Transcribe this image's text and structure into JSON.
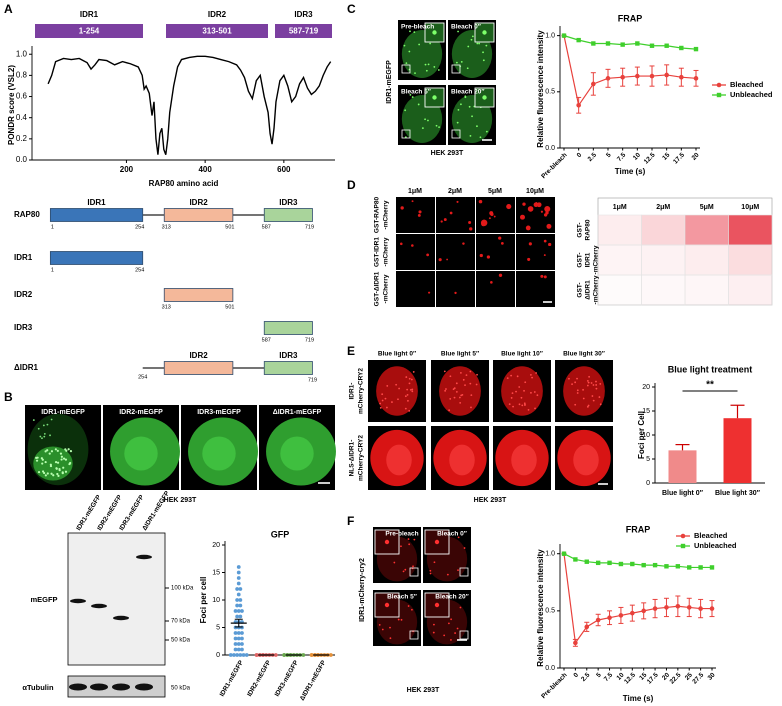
{
  "panel_labels": [
    "A",
    "B",
    "C",
    "D",
    "E",
    "F"
  ],
  "idr_regions": [
    {
      "name": "IDR1",
      "range": "1-254"
    },
    {
      "name": "IDR2",
      "range": "313-501"
    },
    {
      "name": "IDR3",
      "range": "587-719"
    }
  ],
  "domain_map": {
    "rows": [
      {
        "label": "RAP80",
        "domains": [
          {
            "name": "IDR1",
            "start": 1,
            "end": 254,
            "color": "#3a75b8"
          },
          {
            "name": "IDR2",
            "start": 313,
            "end": 501,
            "color": "#f4b89a"
          },
          {
            "name": "IDR3",
            "start": 587,
            "end": 719,
            "color": "#a9d49b"
          }
        ]
      },
      {
        "label": "IDR1",
        "domains": [
          {
            "start": 1,
            "end": 254,
            "color": "#3a75b8"
          }
        ]
      },
      {
        "label": "IDR2",
        "domains": [
          {
            "start": 313,
            "end": 501,
            "color": "#f4b89a"
          }
        ]
      },
      {
        "label": "IDR3",
        "domains": [
          {
            "start": 587,
            "end": 719,
            "color": "#a9d49b"
          }
        ]
      },
      {
        "label": "ΔIDR1",
        "start": 254,
        "end": 719,
        "domains": [
          {
            "name": "IDR2",
            "color": "#f4b89a"
          },
          {
            "name": "IDR3",
            "color": "#a9d49b"
          }
        ]
      }
    ]
  },
  "panel_b": {
    "images": [
      "IDR1-mEGFP",
      "IDR2-mEGFP",
      "IDR3-mEGFP",
      "ΔIDR1-mEGFP"
    ],
    "cell_line": "HEK 293T",
    "blot": {
      "lanes": [
        "IDR1-mEGFP",
        "IDR2-mEGFP",
        "IDR3-mEGFP",
        "ΔIDR1-mEGFP"
      ],
      "markers": [
        "100 kDa",
        "70 kDa",
        "50 kDa"
      ],
      "rows": [
        "mEGFP",
        "αTubulin"
      ],
      "tubulin_marker": "50 kDa"
    }
  },
  "panel_c": {
    "images": [
      "Pre-bleach",
      "Bleach 0″",
      "Bleach 5″",
      "Bleach 20″"
    ],
    "row_label": "IDR1-mEGFP",
    "cell_line": "HEK 293T"
  },
  "panel_d": {
    "columns": [
      "1μM",
      "2μM",
      "5μM",
      "10μM"
    ],
    "rows": [
      [
        "GST-RAP80",
        "-mCherry"
      ],
      [
        "GST-IDR1",
        "-mCherry"
      ],
      [
        "GST-ΔIDR1",
        "-mCherry"
      ]
    ]
  },
  "panel_e": {
    "columns": [
      "Blue light  0″",
      "Blue light 5″",
      "Blue light 10″",
      "Blue light 30″"
    ],
    "rows": [
      [
        "IDR1-",
        "mCherry-CRY2"
      ],
      [
        "NLS-ΔIDR1-",
        "mCherry-CRY2"
      ]
    ],
    "cell_line": "HEK 293T"
  },
  "panel_f": {
    "images": [
      "Pre-bleach",
      "Bleach 0″",
      "Bleach 5″",
      "Bleach 20″"
    ],
    "row_label": "IDR1-mCherry-cry2",
    "cell_line": "HEK 293T"
  },
  "chart_data": [
    {
      "type": "line",
      "x_label": "RAP80 amino acid",
      "y_label": "PONDR score (VSL2)",
      "x": [
        1,
        10,
        20,
        40,
        60,
        80,
        100,
        110,
        120,
        130,
        150,
        170,
        190,
        210,
        230,
        240,
        245,
        250,
        258,
        265,
        270,
        275,
        280,
        285,
        290,
        295,
        300,
        305,
        310,
        320,
        330,
        340,
        360,
        380,
        400,
        420,
        440,
        460,
        480,
        490,
        500,
        510,
        520,
        530,
        540,
        550,
        560,
        565,
        570,
        575,
        580,
        590,
        600,
        610,
        620,
        630,
        640,
        650,
        660,
        670,
        680,
        690,
        700,
        710,
        719
      ],
      "series": [
        {
          "color": "#000000",
          "values": [
            0.72,
            0.8,
            0.93,
            0.96,
            0.95,
            0.96,
            0.92,
            0.86,
            0.9,
            0.95,
            0.94,
            0.9,
            0.93,
            0.91,
            0.88,
            0.8,
            0.67,
            0.7,
            0.63,
            0.42,
            0.55,
            0.2,
            0.05,
            0.25,
            0.3,
            0.1,
            0.05,
            0.2,
            0.45,
            0.7,
            0.88,
            0.95,
            0.97,
            0.98,
            0.98,
            0.97,
            0.95,
            0.93,
            0.9,
            0.85,
            0.78,
            0.65,
            0.58,
            0.75,
            0.8,
            0.6,
            0.45,
            0.25,
            0.15,
            0.3,
            0.55,
            0.75,
            0.8,
            0.7,
            0.55,
            0.6,
            0.72,
            0.78,
            0.68,
            0.62,
            0.65,
            0.7,
            0.8,
            0.88,
            0.93
          ]
        }
      ],
      "xlim": [
        -40,
        730
      ],
      "xticks": [
        200,
        400,
        600
      ],
      "ylim": [
        0,
        1.04
      ],
      "yticks": [
        {
          "value": 0,
          "label": "0.0"
        },
        0.2,
        0.4,
        0.6,
        0.8,
        {
          "value": 1,
          "label": "1.0"
        }
      ]
    },
    {
      "type": "dotplot",
      "title": "GFP",
      "y_label": "Foci per cell",
      "categories": [
        "IDR1-mEGFP",
        "IDR2-mEGFP",
        "IDR3-mEGFP",
        "ΔIDR1-mEGFP"
      ],
      "values": [
        [
          16,
          15,
          14,
          13,
          12,
          12,
          11,
          10,
          10,
          9,
          9,
          8,
          8,
          8,
          7,
          7,
          6,
          6,
          6,
          5,
          5,
          5,
          4,
          4,
          4,
          3,
          3,
          3,
          2,
          2,
          2,
          1,
          1,
          1,
          0,
          0,
          0,
          0,
          0,
          0
        ],
        [
          0,
          0,
          0,
          0,
          0,
          0,
          0,
          0,
          0,
          0
        ],
        [
          0,
          0,
          0,
          0,
          0,
          0,
          0,
          0,
          0,
          0
        ],
        [
          0,
          0,
          0,
          0,
          0,
          0,
          0,
          0,
          0,
          0
        ]
      ],
      "means": [
        5.8,
        0,
        0,
        0
      ],
      "errors": [
        0.7,
        0,
        0,
        0
      ],
      "colors": [
        "#5b9bd5",
        "#e06666",
        "#6aa84f",
        "#e69138"
      ],
      "ylim": [
        0,
        20
      ],
      "yticks": [
        0,
        5,
        10,
        15,
        20
      ]
    },
    {
      "type": "line",
      "title": "FRAP",
      "x_label": "Time (s)",
      "y_label": "Relative fluorescence intensity",
      "categories": [
        "Pre-bleach",
        "0",
        "2.5",
        "5",
        "7.5",
        "10",
        "12.5",
        "15",
        "17.5",
        "20"
      ],
      "series": [
        {
          "name": "Bleached",
          "color": "#e8413c",
          "marker": "circle",
          "values": [
            1.0,
            0.38,
            0.57,
            0.62,
            0.63,
            0.64,
            0.64,
            0.65,
            0.63,
            0.62
          ],
          "errors": [
            0,
            0.07,
            0.1,
            0.08,
            0.08,
            0.08,
            0.09,
            0.09,
            0.08,
            0.07
          ]
        },
        {
          "name": "Unbleached",
          "color": "#3fcf2c",
          "marker": "square",
          "values": [
            1.0,
            0.96,
            0.93,
            0.93,
            0.92,
            0.93,
            0.91,
            0.91,
            0.89,
            0.88
          ]
        }
      ],
      "legend": "right",
      "ylim": [
        0,
        1.05
      ],
      "yticks": [
        {
          "value": 0,
          "label": "0.0"
        },
        0.5,
        {
          "value": 1,
          "label": "1.0"
        }
      ]
    },
    {
      "type": "heatmap",
      "color": "#e8414f",
      "columns": [
        "1μM",
        "2μM",
        "5μM",
        "10μM"
      ],
      "rows": [
        [
          "GST-",
          "RAP80"
        ],
        [
          "GST-",
          "IDR1",
          "-mCherry"
        ],
        [
          "GST-",
          "ΔIDR1",
          "-mCherry"
        ]
      ],
      "values": [
        [
          0.08,
          0.18,
          0.45,
          0.75
        ],
        [
          0.05,
          0.06,
          0.08,
          0.15
        ],
        [
          0.02,
          0.03,
          0.04,
          0.07
        ]
      ]
    },
    {
      "type": "bar",
      "title": "Blue light treatment",
      "y_label": "Foci per Cell",
      "categories": [
        "Blue light  0″",
        "Blue light  30″"
      ],
      "values": [
        6.8,
        13.5
      ],
      "errors": [
        1.2,
        2.7
      ],
      "colors": [
        "#f08a8a",
        "#ee3030"
      ],
      "annotation": "**",
      "ylim": [
        0,
        20
      ],
      "yticks": [
        0,
        5,
        10,
        15,
        20
      ]
    },
    {
      "type": "line",
      "title": "FRAP",
      "x_label": "Time (s)",
      "y_label": "Relative fluorescence intensity",
      "categories": [
        "Pre-bleach",
        "0",
        "2.5",
        "5",
        "7.5",
        "10",
        "12.5",
        "15",
        "17.5",
        "20",
        "22.5",
        "25",
        "27.5",
        "30"
      ],
      "series": [
        {
          "name": "Bleached",
          "color": "#e8413c",
          "marker": "circle",
          "values": [
            1.0,
            0.22,
            0.36,
            0.42,
            0.44,
            0.46,
            0.48,
            0.5,
            0.52,
            0.53,
            0.54,
            0.53,
            0.52,
            0.52
          ],
          "errors": [
            0,
            0.03,
            0.04,
            0.05,
            0.06,
            0.07,
            0.07,
            0.07,
            0.08,
            0.08,
            0.09,
            0.08,
            0.08,
            0.07
          ]
        },
        {
          "name": "Unbleached",
          "color": "#3fcf2c",
          "marker": "square",
          "values": [
            1.0,
            0.95,
            0.93,
            0.92,
            0.92,
            0.91,
            0.91,
            0.9,
            0.9,
            0.89,
            0.89,
            0.88,
            0.88,
            0.88
          ]
        }
      ],
      "legend": "upper-right",
      "ylim": [
        0,
        1.05
      ],
      "yticks": [
        {
          "value": 0,
          "label": "0.0"
        },
        0.5,
        {
          "value": 1,
          "label": "1.0"
        }
      ]
    }
  ]
}
